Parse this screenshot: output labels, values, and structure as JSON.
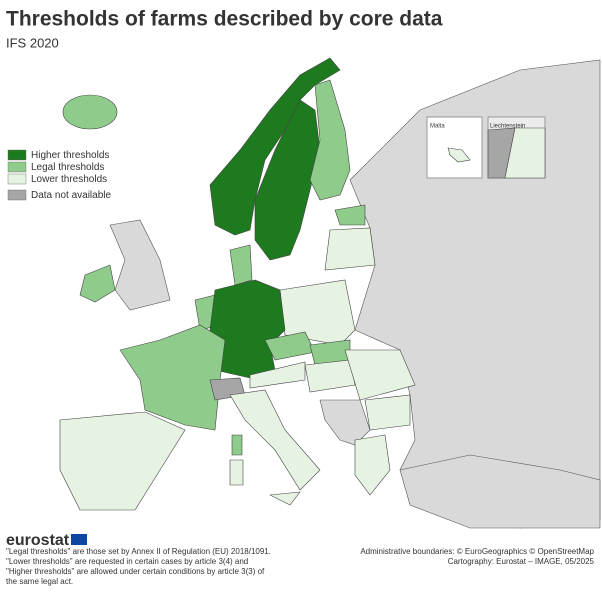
{
  "title": "Thresholds of farms described by core data",
  "subtitle": "IFS 2020",
  "legend": [
    {
      "label": "Higher thresholds",
      "color": "#1e7a1e"
    },
    {
      "label": "Legal thresholds",
      "color": "#8fcb8a"
    },
    {
      "label": "Lower thresholds",
      "color": "#e6f3e2"
    },
    {
      "label": "Data not available",
      "color": "#a6a6a6"
    }
  ],
  "insets": [
    "Malta",
    "Liechtenstein"
  ],
  "logo": "eurostat",
  "notes": [
    "\"Legal thresholds\" are those set by Annex II of Regulation (EU) 2018/1091.",
    "\"Lower thresholds\" are requested in certain cases by article 3(4) and",
    "\"Higher thresholds\" are allowed under certain conditions by article 3(3) of",
    "the same legal act."
  ],
  "credits": [
    "Administrative boundaries: © EuroGeographics © OpenStreetMap",
    "Cartography: Eurostat – IMAGE, 05/2025"
  ]
}
